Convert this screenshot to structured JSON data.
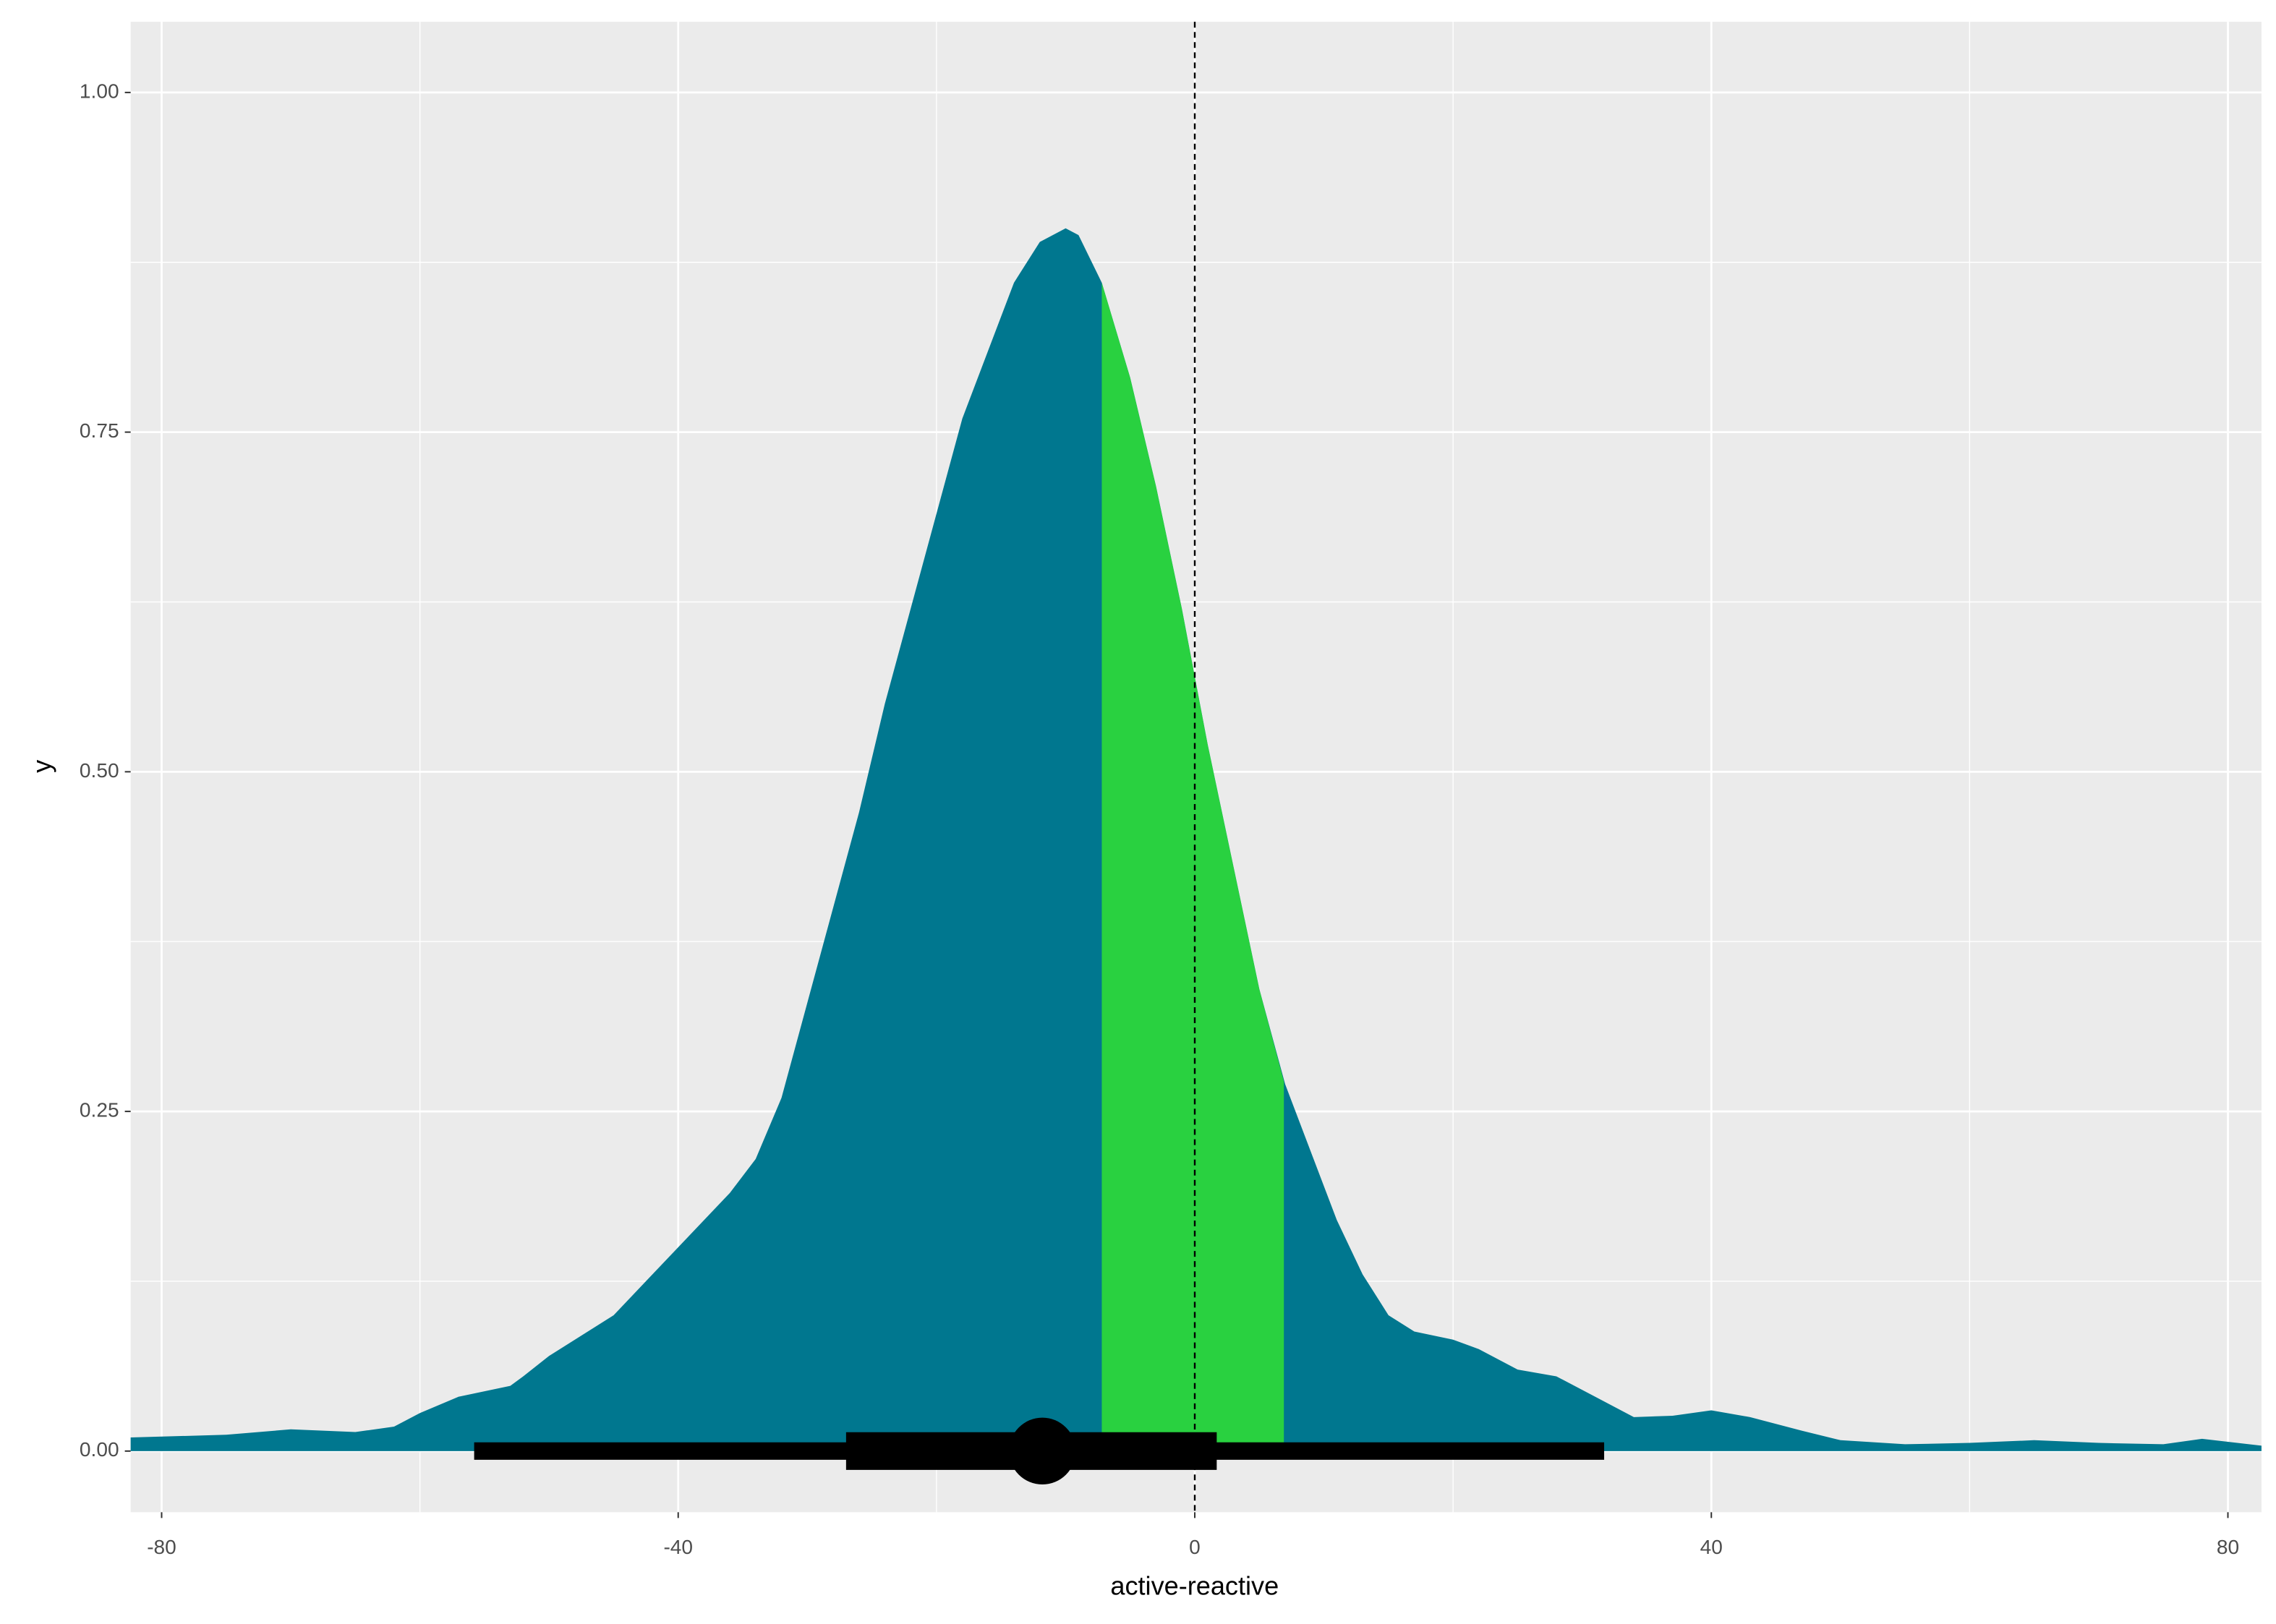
{
  "chart_data": {
    "type": "halfeye",
    "x_label": "active-reactive",
    "y_label": "y",
    "xlim": [
      -82.4,
      82.6
    ],
    "ylim": [
      -0.045,
      1.052
    ],
    "xticks": [
      -80,
      -40,
      0,
      40,
      80
    ],
    "yticks": [
      {
        "value": 0,
        "label": "0.00"
      },
      {
        "value": 0.25,
        "label": "0.25"
      },
      {
        "value": 0.5,
        "label": "0.50"
      },
      {
        "value": 0.75,
        "label": "0.75"
      },
      {
        "value": 1,
        "label": "1.00"
      }
    ],
    "x_minor_grid": [
      -60,
      -20,
      20,
      60
    ],
    "y_minor_grid": [
      0.125,
      0.375,
      0.625,
      0.875
    ],
    "grid": true,
    "series": [
      {
        "color": "#00778f",
        "x": [
          -82.4,
          -75,
          -70,
          -65,
          -62,
          -60,
          -57,
          -53,
          -52,
          -50,
          -45,
          -40,
          -36,
          -34,
          -32,
          -30,
          -28,
          -26,
          -24,
          -22,
          -20,
          -18,
          -16,
          -14,
          -12,
          -10,
          -9,
          -7.2,
          -5,
          -3,
          -1,
          0,
          1,
          3,
          5,
          7,
          9,
          11,
          13,
          15,
          17,
          20,
          22,
          25,
          28,
          31,
          34,
          37,
          40,
          43,
          47,
          50,
          55,
          60,
          65,
          70,
          75,
          78,
          82.6
        ],
        "values": [
          0.01,
          0.012,
          0.016,
          0.014,
          0.018,
          0.028,
          0.04,
          0.048,
          0.055,
          0.07,
          0.1,
          0.15,
          0.19,
          0.215,
          0.26,
          0.33,
          0.4,
          0.47,
          0.55,
          0.62,
          0.69,
          0.76,
          0.81,
          0.86,
          0.89,
          0.9,
          0.895,
          0.86,
          0.79,
          0.71,
          0.62,
          0.57,
          0.52,
          0.43,
          0.34,
          0.27,
          0.22,
          0.17,
          0.13,
          0.1,
          0.088,
          0.082,
          0.075,
          0.06,
          0.055,
          0.04,
          0.025,
          0.026,
          0.03,
          0.025,
          0.015,
          0.008,
          0.005,
          0.006,
          0.008,
          0.006,
          0.005,
          0.009,
          0.004
        ]
      },
      {
        "color": "#29d140",
        "x": [
          -7.2,
          -5,
          -3,
          -1,
          0,
          1,
          3,
          5,
          6.9
        ],
        "values": [
          0.86,
          0.79,
          0.71,
          0.62,
          0.57,
          0.52,
          0.43,
          0.34,
          0.272
        ]
      }
    ],
    "interval": {
      "color": "#000000",
      "point": -11.8,
      "inner": [
        -27,
        1.7
      ],
      "outer": [
        -55.8,
        31.7
      ]
    },
    "vline": 0
  }
}
